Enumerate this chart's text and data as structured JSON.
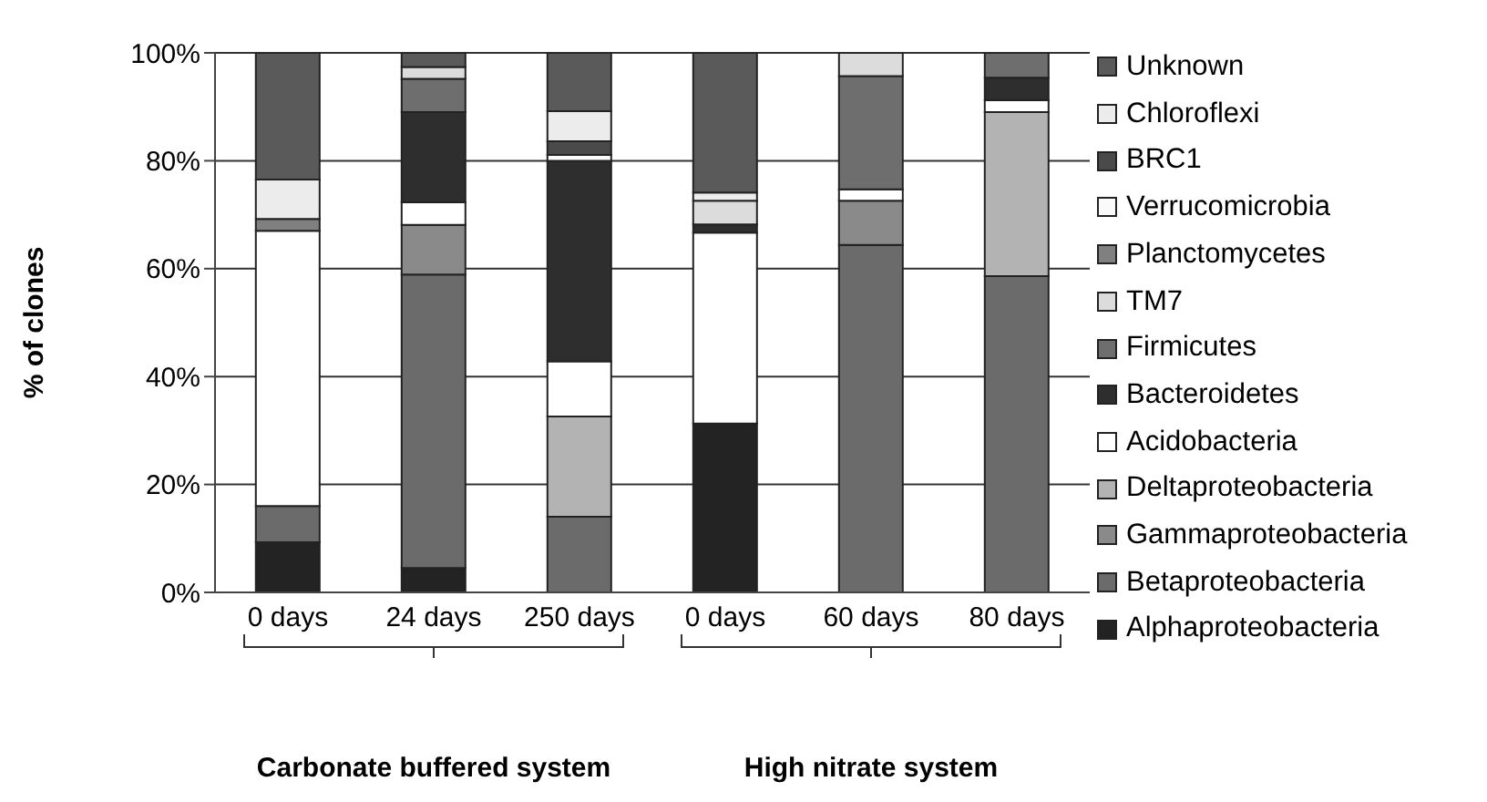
{
  "chart_data": {
    "type": "bar",
    "stacked": true,
    "ylabel": "% of clones",
    "categories": [
      "0 days",
      "24 days",
      "250 days",
      "0 days",
      "60 days",
      "80 days"
    ],
    "series": [
      {
        "name": "Alphaproteobacteria",
        "color": "#232323",
        "values": [
          9.3,
          4.5,
          0,
          31.3,
          0,
          0
        ]
      },
      {
        "name": "Betaproteobacteria",
        "color": "#6b6b6b",
        "values": [
          6.7,
          54.4,
          14,
          0,
          64.4,
          58.6
        ]
      },
      {
        "name": "Gammaproteobacteria",
        "color": "#8a8a8a",
        "values": [
          0,
          9.2,
          0,
          0,
          8.2,
          0
        ]
      },
      {
        "name": "Deltaproteobacteria",
        "color": "#b3b3b3",
        "values": [
          0,
          0,
          18.6,
          0,
          0,
          30.4
        ]
      },
      {
        "name": "Acidobacteria",
        "color": "#ffffff",
        "values": [
          51,
          4.2,
          10.2,
          35.4,
          2.1,
          2.2
        ]
      },
      {
        "name": "Bacteroidetes",
        "color": "#2e2e2e",
        "values": [
          0,
          16.7,
          37.2,
          1.5,
          0,
          4.2
        ]
      },
      {
        "name": "Firmicutes",
        "color": "#6e6e6e",
        "values": [
          0,
          6.2,
          0,
          0,
          21,
          4.6
        ]
      },
      {
        "name": "TM7",
        "color": "#dcdcdc",
        "values": [
          0,
          2.2,
          0,
          4.4,
          4.3,
          0
        ]
      },
      {
        "name": "Planctomycetes",
        "color": "#808080",
        "values": [
          2.2,
          0,
          0,
          0,
          0,
          0
        ]
      },
      {
        "name": "Verrucomicrobia",
        "color": "#fafafa",
        "values": [
          0,
          0,
          1.1,
          0,
          0,
          0
        ]
      },
      {
        "name": "BRC1",
        "color": "#4a4a4a",
        "values": [
          0,
          0,
          2.5,
          0,
          0,
          0
        ]
      },
      {
        "name": "Chloroflexi",
        "color": "#ececec",
        "values": [
          7.3,
          0,
          5.6,
          1.5,
          0,
          0
        ]
      },
      {
        "name": "Unknown",
        "color": "#5a5a5a",
        "values": [
          23.5,
          2.7,
          10.8,
          25.9,
          0,
          0
        ]
      }
    ],
    "ylim": [
      0,
      100
    ],
    "yticks": [
      {
        "value": 0,
        "label": "0%"
      },
      {
        "value": 20,
        "label": "20%"
      },
      {
        "value": 40,
        "label": "40%"
      },
      {
        "value": 60,
        "label": "60%"
      },
      {
        "value": 80,
        "label": "80%"
      },
      {
        "value": 100,
        "label": "100%"
      }
    ],
    "grid": "y",
    "legend": "right",
    "annotations": [
      "Carbonate buffered system",
      "High nitrate system"
    ]
  }
}
